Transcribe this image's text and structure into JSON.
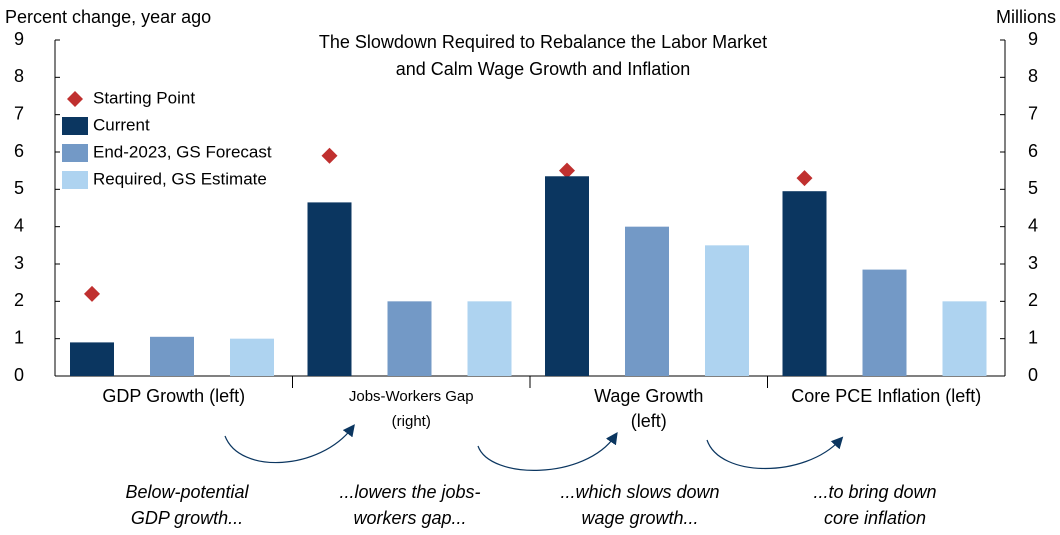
{
  "chart_data": {
    "type": "bar",
    "title": [
      "The Slowdown Required to Rebalance the Labor Market",
      "and Calm Wage Growth and Inflation"
    ],
    "y_label": "Percent change, year ago",
    "y2_label": "Millions",
    "categories": [
      [
        "GDP Growth (left)"
      ],
      [
        "Jobs-Workers Gap",
        "(right)"
      ],
      [
        "Wage Growth",
        "(left)"
      ],
      [
        "Core PCE Inflation (left)"
      ]
    ],
    "series": [
      {
        "name": "Starting Point",
        "color": "#c0302f",
        "marker": "diamond",
        "values": [
          2.2,
          5.9,
          5.5,
          5.3
        ]
      },
      {
        "name": "Current",
        "color": "#0b3660",
        "values": [
          0.9,
          4.65,
          5.35,
          4.95
        ]
      },
      {
        "name": "End-2023, GS Forecast",
        "color": "#7399c6",
        "values": [
          1.05,
          2.0,
          4.0,
          2.85
        ]
      },
      {
        "name": "Required, GS Estimate",
        "color": "#aed3f0",
        "values": [
          1.0,
          2.0,
          3.5,
          2.0
        ]
      }
    ],
    "ylim": [
      0,
      9
    ],
    "yticks": [
      0,
      1,
      2,
      3,
      4,
      5,
      6,
      7,
      8,
      9
    ],
    "y2lim": [
      0,
      9
    ],
    "y2ticks": [
      0,
      1,
      2,
      3,
      4,
      5,
      6,
      7,
      8,
      9
    ],
    "annotations": [
      [
        "Below-potential",
        "GDP growth..."
      ],
      [
        "...lowers the jobs-",
        "workers gap..."
      ],
      [
        "...which slows down",
        "wage growth..."
      ],
      [
        "...to bring down",
        "core inflation"
      ]
    ]
  }
}
